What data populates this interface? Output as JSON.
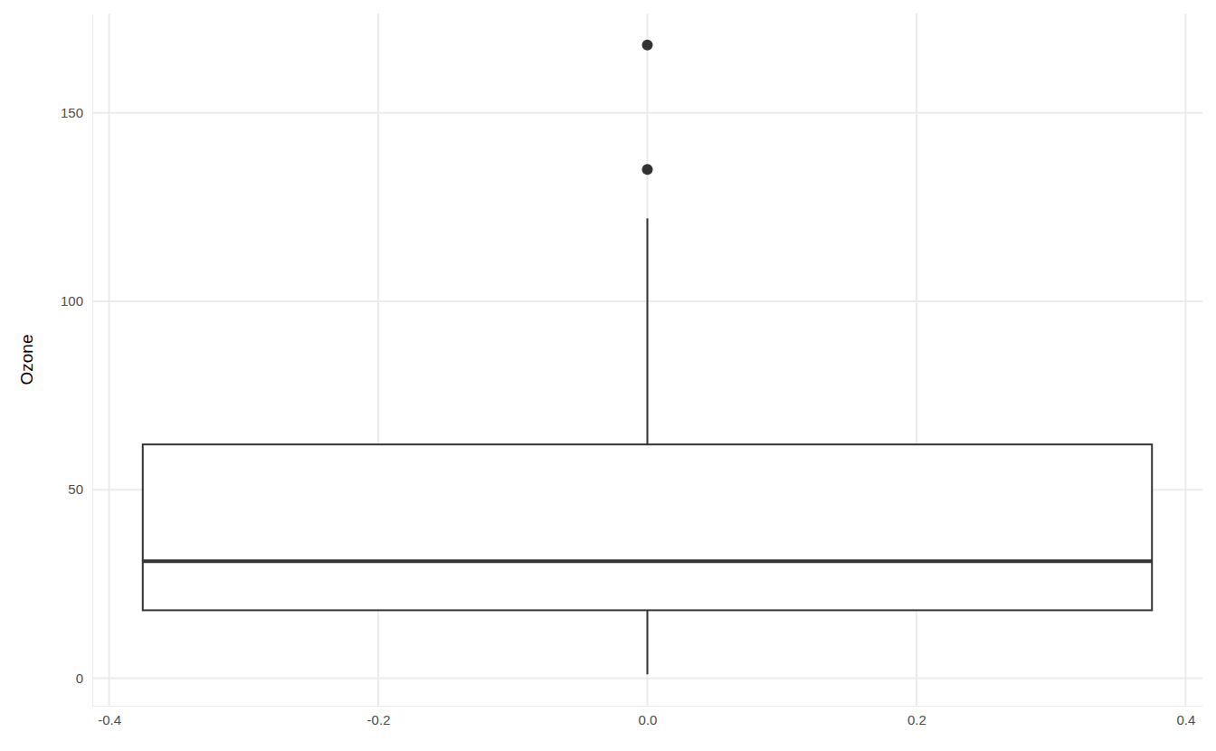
{
  "chart_data": {
    "type": "box",
    "y_label": "Ozone",
    "boxes": [
      {
        "x": 0,
        "min": 1,
        "q1": 18,
        "median": 31,
        "q3": 62,
        "max": 122,
        "outliers": [
          135,
          168
        ]
      }
    ],
    "xlim": [
      -0.4125,
      0.4125
    ],
    "xticks": [
      -0.4,
      -0.2,
      {
        "value": 0,
        "label": "0.0"
      },
      0.2,
      0.4
    ],
    "ylim": [
      -7.35,
      176.35
    ],
    "yticks": [
      0,
      50,
      100,
      150
    ],
    "grid": true,
    "color": "#333333"
  }
}
